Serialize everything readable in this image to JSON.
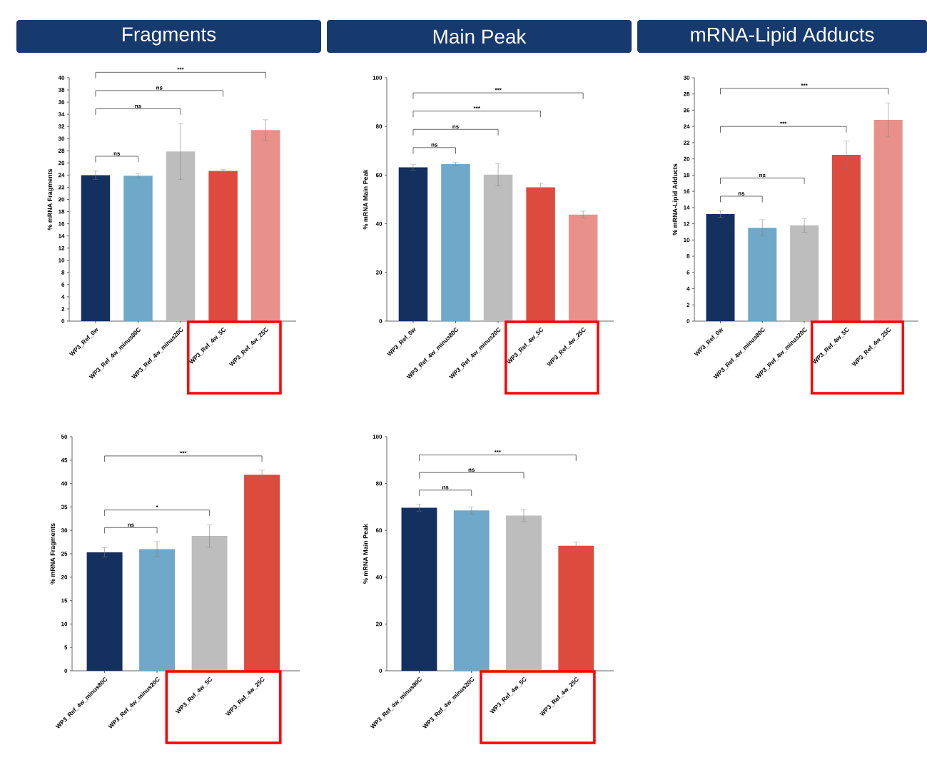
{
  "chart_data": [
    {
      "type": "bar",
      "title": "Fragments",
      "ylabel": "% mRNA Fragments",
      "categories": [
        "WP3_Ref_0w",
        "WP3_Ref_4w_minus80C",
        "WP3_Ref_4w_minus20C",
        "WP3_Ref_4w_5C",
        "WP3_Ref_4w_25C"
      ],
      "values": [
        24.0,
        23.9,
        27.9,
        24.7,
        31.4
      ],
      "errors": [
        0.7,
        0.35,
        4.6,
        0.2,
        1.7
      ],
      "colors": [
        "#14305f",
        "#6fa8c8",
        "#bdbdbd",
        "#dc4b3e",
        "#e8918a"
      ],
      "ylim": [
        0,
        40
      ],
      "yticks": [
        0,
        2,
        4,
        6,
        8,
        10,
        12,
        14,
        16,
        18,
        20,
        22,
        24,
        26,
        28,
        30,
        32,
        34,
        36,
        38,
        40
      ],
      "annotations": [
        "ns",
        "ns",
        "ns",
        "***"
      ]
    },
    {
      "type": "bar",
      "title": "Main Peak",
      "ylabel": "% mRNA Main Peak",
      "categories": [
        "WP3_Ref_0w",
        "WP3_Ref_4w_minus80C",
        "WP3_Ref_4w_minus20C",
        "WP3_Ref_4w_5C",
        "WP3_Ref_4w_25C"
      ],
      "values": [
        63.2,
        64.5,
        60.2,
        55.0,
        43.8
      ],
      "errors": [
        1.2,
        0.8,
        4.6,
        1.7,
        1.4
      ],
      "colors": [
        "#14305f",
        "#6fa8c8",
        "#bdbdbd",
        "#dc4b3e",
        "#e8918a"
      ],
      "ylim": [
        0,
        100
      ],
      "yticks": [
        0,
        20,
        40,
        60,
        80,
        100
      ],
      "annotations": [
        "ns",
        "ns",
        "***",
        "***"
      ]
    },
    {
      "type": "bar",
      "title": "mRNA-Lipid Adducts",
      "ylabel": "% mRNA-Lipid Adducts",
      "categories": [
        "WP3_Ref_0w",
        "WP3_Ref_4w_minus80C",
        "WP3_Ref_4w_minus20C",
        "WP3_Ref_4w_5C",
        "WP3_Ref_4w_25C"
      ],
      "values": [
        13.2,
        11.5,
        11.8,
        20.5,
        24.8
      ],
      "errors": [
        0.4,
        1.0,
        0.85,
        1.7,
        2.1
      ],
      "colors": [
        "#14305f",
        "#6fa8c8",
        "#bdbdbd",
        "#dc4b3e",
        "#e8918a"
      ],
      "ylim": [
        0,
        30
      ],
      "yticks": [
        0,
        2,
        4,
        6,
        8,
        10,
        12,
        14,
        16,
        18,
        20,
        22,
        24,
        26,
        28,
        30
      ],
      "annotations": [
        "ns",
        "ns",
        "***",
        "***"
      ]
    },
    {
      "type": "bar",
      "ylabel": "% mRNA Fragments",
      "categories": [
        "WP3_Ref_4w_minus80C",
        "WP3_Ref_4w_minus20C",
        "WP3_Ref_4w_5C",
        "WP3_Ref_4w_25C"
      ],
      "values": [
        25.3,
        26.0,
        28.8,
        41.9
      ],
      "errors": [
        1.0,
        1.6,
        2.4,
        1.0
      ],
      "colors": [
        "#14305f",
        "#6fa8c8",
        "#bdbdbd",
        "#dc4b3e"
      ],
      "ylim": [
        0,
        50
      ],
      "yticks": [
        0,
        5,
        10,
        15,
        20,
        25,
        30,
        35,
        40,
        45,
        50
      ],
      "annotations": [
        "ns",
        "*",
        "***"
      ]
    },
    {
      "type": "bar",
      "ylabel": "% mRNA Main Peak",
      "categories": [
        "WP3_Ref_4w_minus80C",
        "WP3_Ref_4w_minus20C",
        "WP3_Ref_4w_5C",
        "WP3_Ref_4w_25C"
      ],
      "values": [
        69.7,
        68.5,
        66.3,
        53.4
      ],
      "errors": [
        1.5,
        1.5,
        2.6,
        1.6
      ],
      "colors": [
        "#14305f",
        "#6fa8c8",
        "#bdbdbd",
        "#dc4b3e"
      ],
      "ylim": [
        0,
        100
      ],
      "yticks": [
        0,
        20,
        40,
        60,
        80,
        100
      ],
      "annotations": [
        "ns",
        "ns",
        "***"
      ]
    }
  ]
}
